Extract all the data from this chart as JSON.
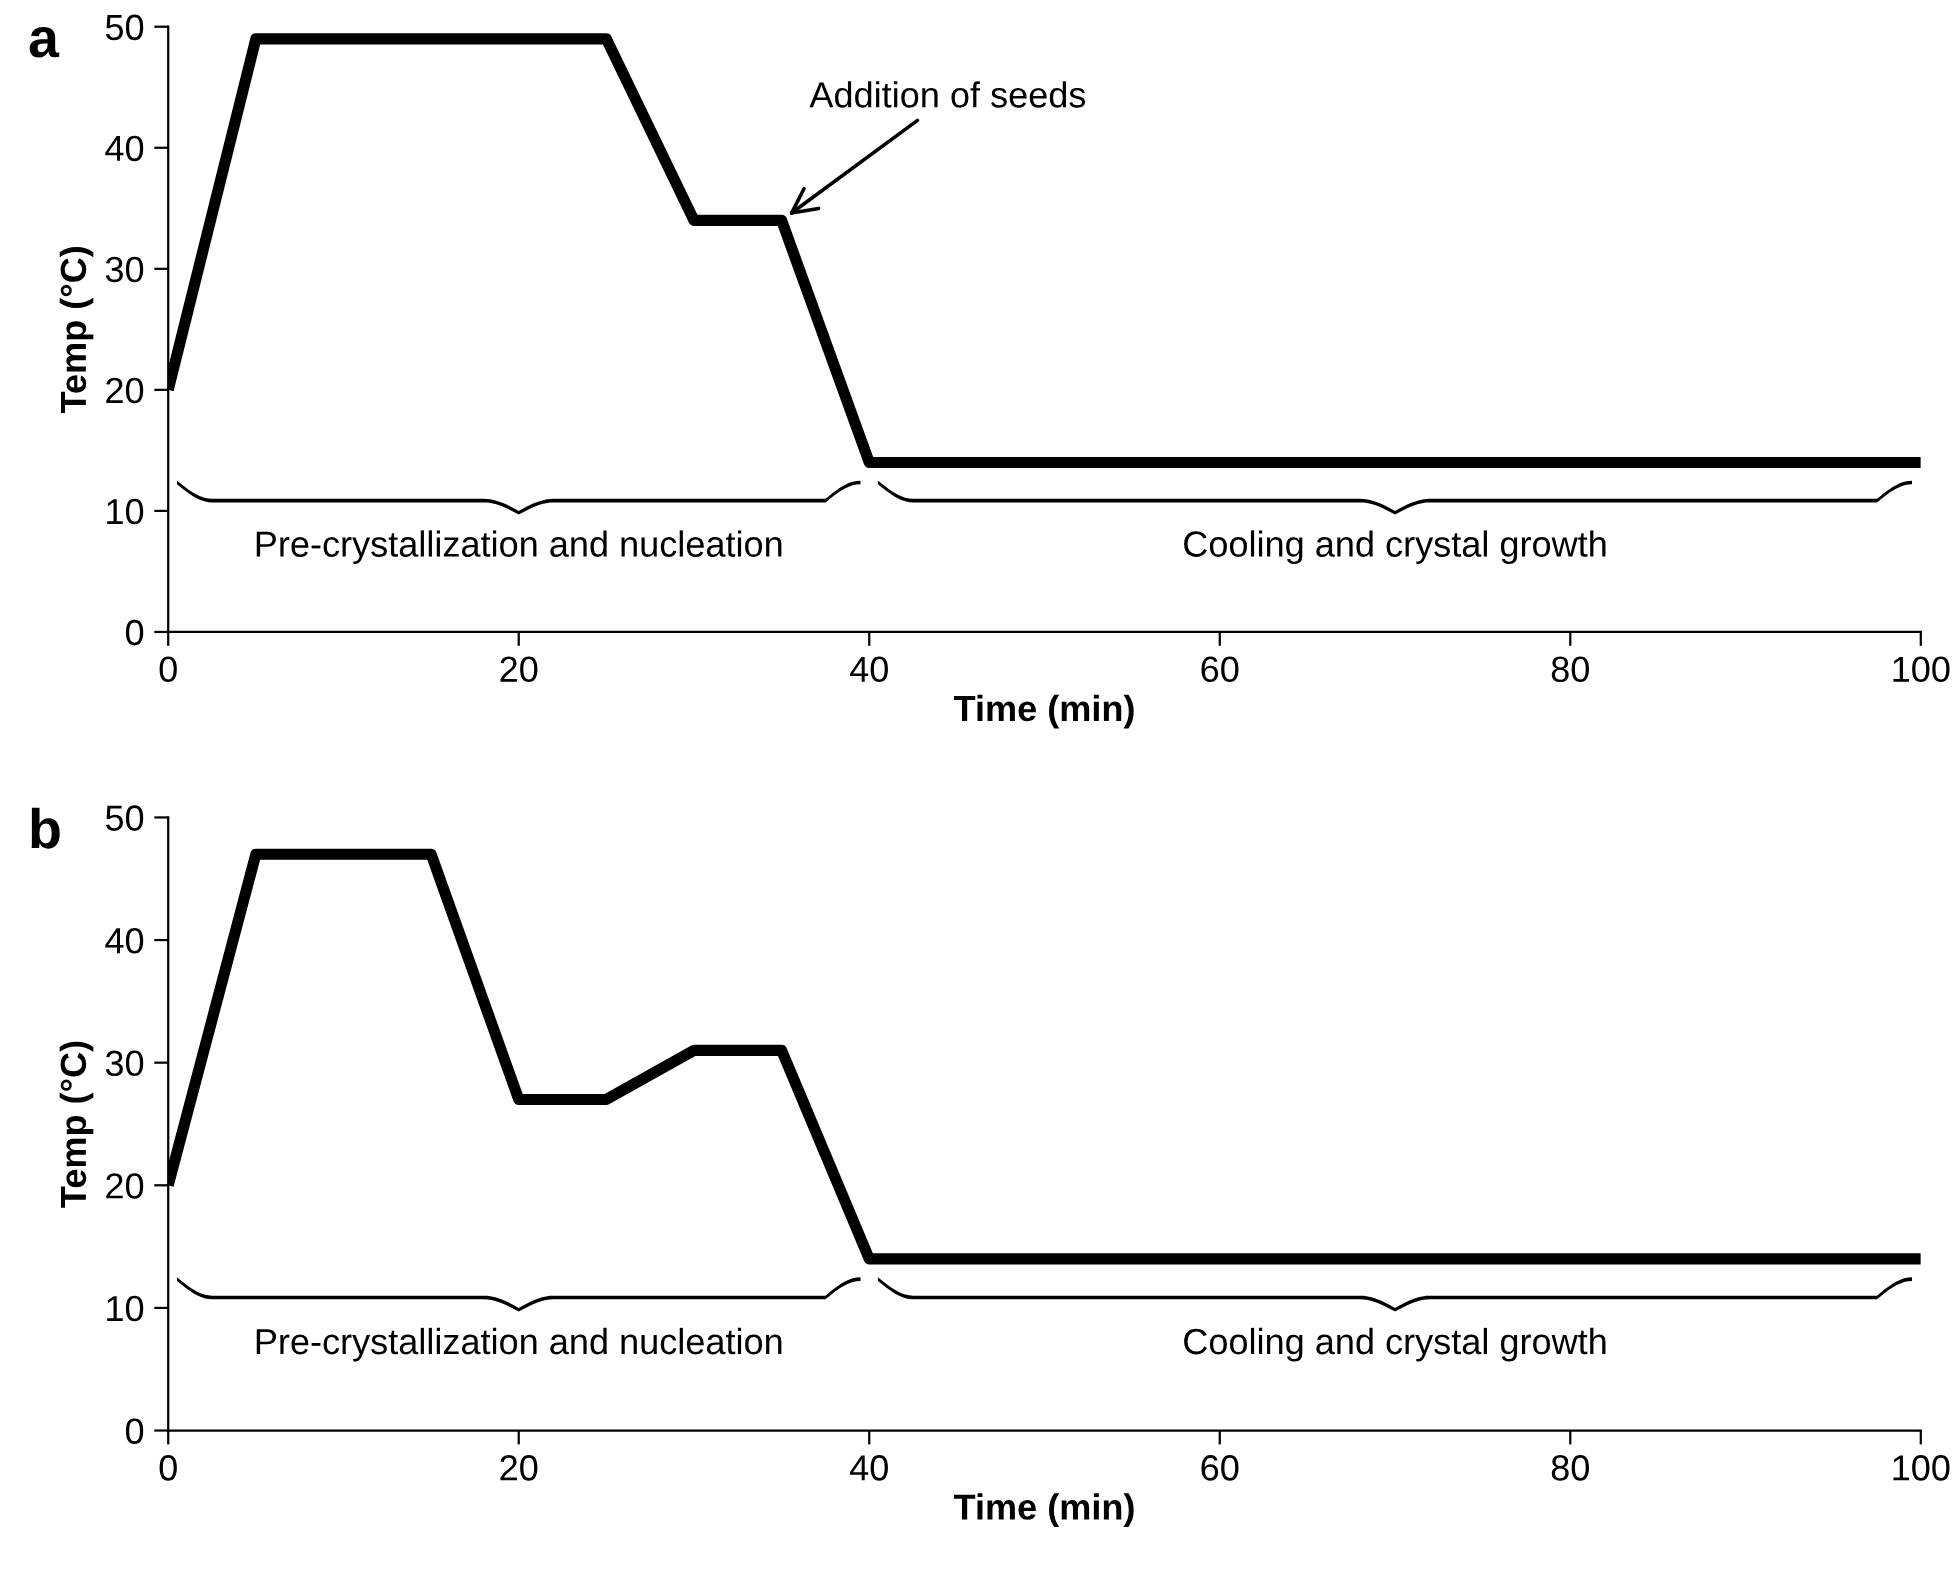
{
  "chart_data": [
    {
      "type": "line",
      "title": "a",
      "xlabel": "Time (min)",
      "ylabel": "Temp (°C)",
      "x": [
        0,
        5,
        25,
        30,
        35,
        40,
        100
      ],
      "series": [
        {
          "color": "#000000",
          "values": [
            20,
            49,
            49,
            34,
            34,
            14,
            14
          ]
        }
      ],
      "xlim": [
        0,
        100
      ],
      "ylim": [
        0,
        50
      ],
      "xticks": [
        0,
        20,
        40,
        60,
        80,
        100
      ],
      "yticks": [
        0,
        10,
        20,
        30,
        40,
        50
      ],
      "grid": false,
      "marker": "none",
      "line_style": "solid",
      "annotations": [
        "Pre-crystallization and nucleation",
        "Cooling and crystal growth",
        {
          "text": "Addition of seeds",
          "x": 35,
          "y": 34
        }
      ]
    },
    {
      "type": "line",
      "title": "b",
      "xlabel": "Time (min)",
      "ylabel": "Temp (°C)",
      "x": [
        0,
        5,
        15,
        20,
        25,
        30,
        35,
        40,
        100
      ],
      "series": [
        {
          "color": "#000000",
          "values": [
            20,
            47,
            47,
            27,
            27,
            31,
            31,
            14,
            14
          ]
        }
      ],
      "xlim": [
        0,
        100
      ],
      "ylim": [
        0,
        50
      ],
      "xticks": [
        0,
        20,
        40,
        60,
        80,
        100
      ],
      "yticks": [
        0,
        10,
        20,
        30,
        40,
        50
      ],
      "grid": false,
      "marker": "none",
      "line_style": "solid",
      "annotations": [
        "Pre-crystallization and nucleation",
        "Cooling and crystal growth"
      ]
    }
  ]
}
